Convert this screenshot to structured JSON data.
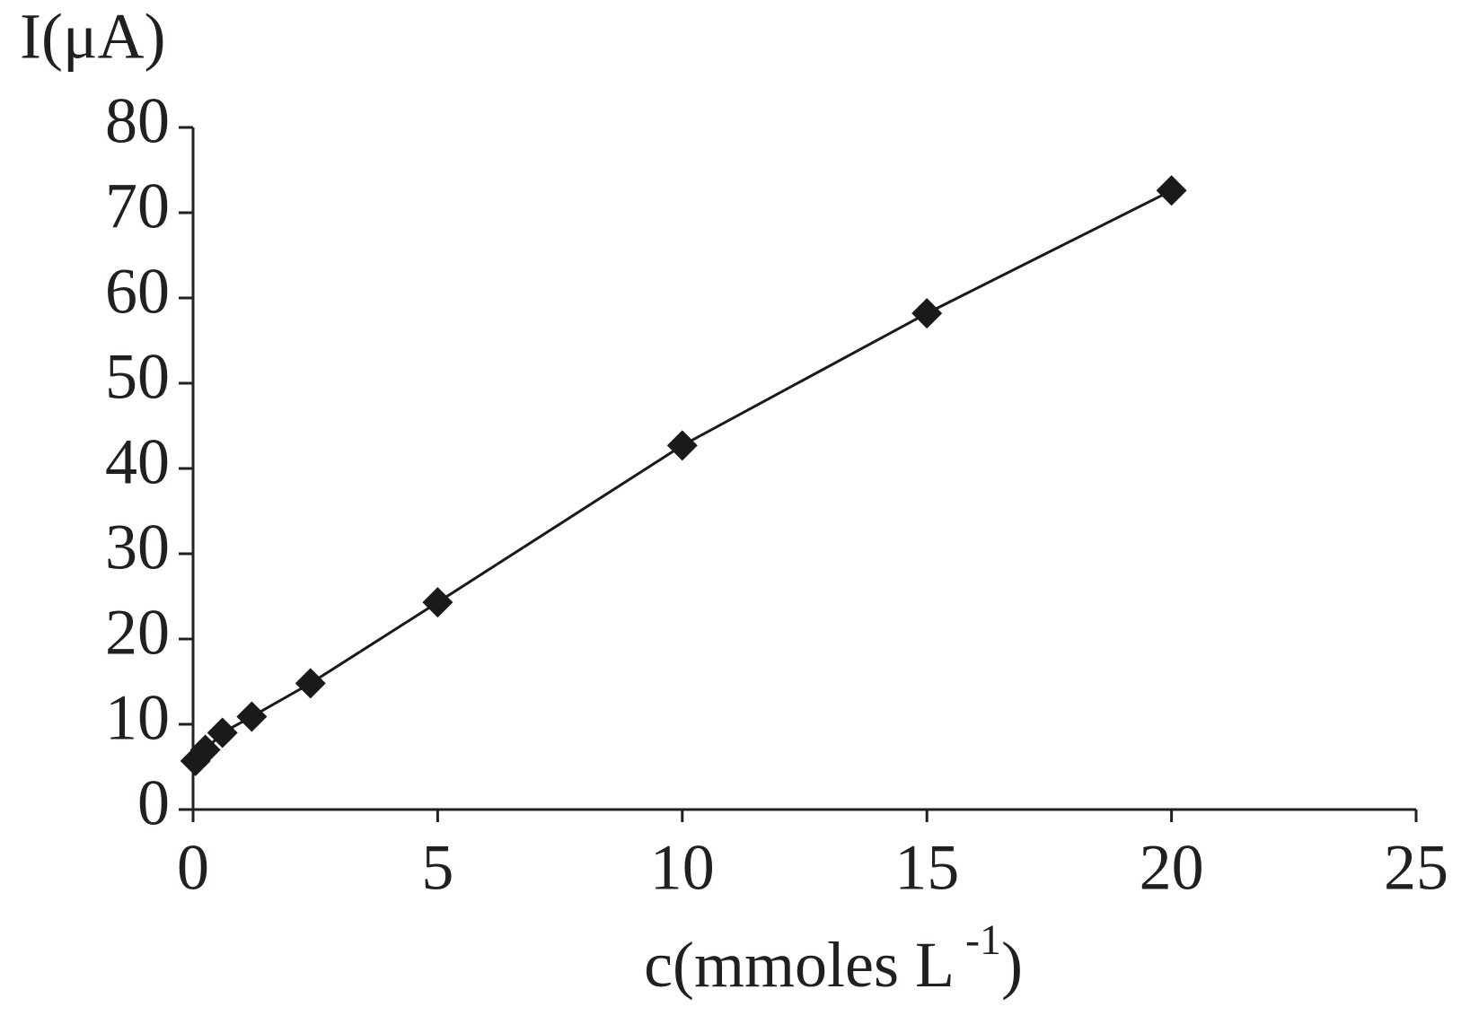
{
  "chart_data": {
    "type": "line",
    "ylabel": "I(μA)",
    "xlabel": [
      "c(mmoles L",
      "-1",
      ")"
    ],
    "x": [
      0.05,
      0.25,
      0.6,
      1.2,
      2.4,
      5,
      10,
      15,
      20
    ],
    "series": [
      {
        "color": "#1a1a1a",
        "values": [
          5.7,
          7.0,
          9.0,
          10.9,
          14.8,
          24.3,
          42.7,
          58.2,
          72.6
        ]
      }
    ],
    "xlim": [
      0,
      25
    ],
    "xticks": [
      0,
      5,
      10,
      15,
      20,
      25
    ],
    "ylim": [
      0,
      80
    ],
    "yticks": [
      0,
      10,
      20,
      30,
      40,
      50,
      60,
      70,
      80
    ],
    "marker": "diamond"
  }
}
